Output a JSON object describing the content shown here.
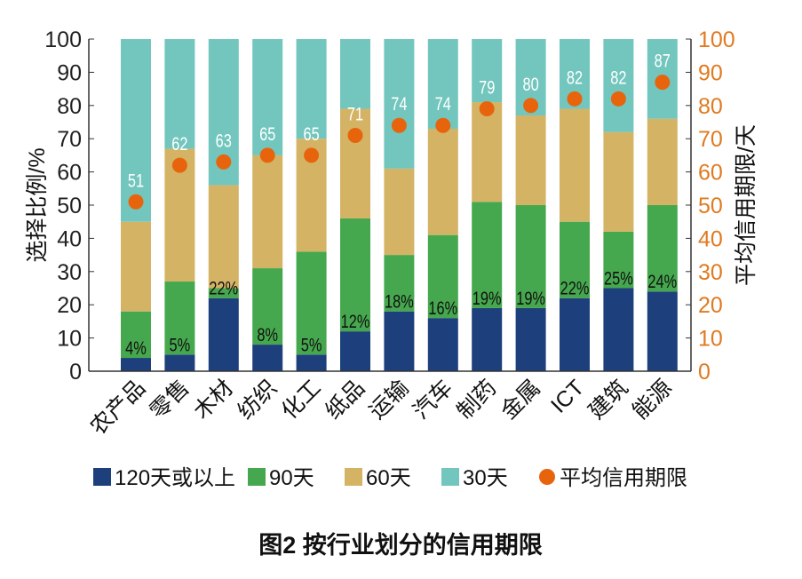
{
  "chart_data": {
    "type": "bar",
    "stacked": true,
    "title": "图2  按行业划分的信用期限",
    "ylabel": "选择比例/%",
    "y2label": "平均信用期限/天",
    "ylim": [
      0,
      100
    ],
    "y2lim": [
      0,
      100
    ],
    "yticks": [
      0,
      10,
      20,
      30,
      40,
      50,
      60,
      70,
      80,
      90,
      100
    ],
    "categories": [
      "农产品",
      "零售",
      "木材",
      "纺织",
      "化工",
      "纸品",
      "运输",
      "汽车",
      "制药",
      "金属",
      "ICT",
      "建筑",
      "能源"
    ],
    "series": [
      {
        "name": "120天或以上",
        "color": "#1d3f7c",
        "values": [
          4,
          5,
          22,
          8,
          5,
          12,
          18,
          16,
          19,
          19,
          22,
          25,
          24
        ],
        "labels": [
          "4%",
          "5%",
          "22%",
          "8%",
          "5%",
          "12%",
          "18%",
          "16%",
          "19%",
          "19%",
          "22%",
          "25%",
          "24%"
        ]
      },
      {
        "name": "90天",
        "color": "#46a84e",
        "values": [
          14,
          22,
          3,
          23,
          31,
          34,
          17,
          25,
          32,
          31,
          23,
          17,
          26
        ]
      },
      {
        "name": "60天",
        "color": "#d4b365",
        "values": [
          27,
          40,
          31,
          34,
          34,
          33,
          26,
          32,
          30,
          27,
          34,
          30,
          26
        ]
      },
      {
        "name": "30天",
        "color": "#72c6be",
        "values": [
          55,
          33,
          44,
          35,
          30,
          21,
          39,
          27,
          19,
          23,
          21,
          28,
          24
        ]
      },
      {
        "name": "平均信用期限",
        "color": "#e8640c",
        "type": "scatter",
        "axis": "right",
        "values": [
          51,
          62,
          63,
          65,
          65,
          71,
          74,
          74,
          79,
          80,
          82,
          82,
          87
        ]
      }
    ],
    "legend_position": "bottom",
    "grid": false
  }
}
